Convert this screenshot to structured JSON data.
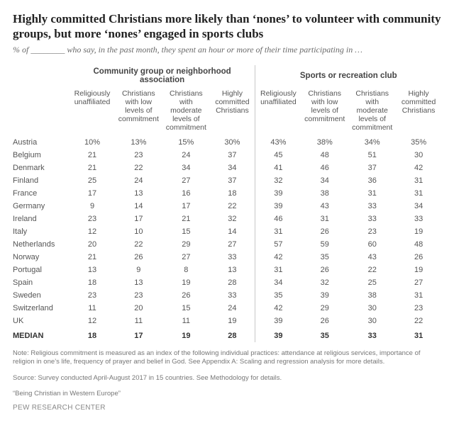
{
  "title": "Highly committed Christians more likely than ‘nones’ to volunteer with community groups, but more ‘nones’ engaged in sports clubs",
  "subtitle": "% of ________ who say, in the past month, they spent an hour or more of their time participating in …",
  "groups": {
    "left": "Community group or neighborhood association",
    "right": "Sports or recreation club"
  },
  "col_heads": {
    "c1": "Religiously unaffiliated",
    "c2": "Christians with low levels of commitment",
    "c3": "Christians with moderate levels of commitment",
    "c4": "Highly committed Christians"
  },
  "rows": [
    {
      "country": "Austria",
      "l": [
        "10%",
        "13%",
        "15%",
        "30%"
      ],
      "r": [
        "43%",
        "38%",
        "34%",
        "35%"
      ]
    },
    {
      "country": "Belgium",
      "l": [
        "21",
        "23",
        "24",
        "37"
      ],
      "r": [
        "45",
        "48",
        "51",
        "30"
      ]
    },
    {
      "country": "Denmark",
      "l": [
        "21",
        "22",
        "34",
        "34"
      ],
      "r": [
        "41",
        "46",
        "37",
        "42"
      ]
    },
    {
      "country": "Finland",
      "l": [
        "25",
        "24",
        "27",
        "37"
      ],
      "r": [
        "32",
        "34",
        "36",
        "31"
      ]
    },
    {
      "country": "France",
      "l": [
        "17",
        "13",
        "16",
        "18"
      ],
      "r": [
        "39",
        "38",
        "31",
        "31"
      ]
    },
    {
      "country": "Germany",
      "l": [
        "9",
        "14",
        "17",
        "22"
      ],
      "r": [
        "39",
        "43",
        "33",
        "34"
      ]
    },
    {
      "country": "Ireland",
      "l": [
        "23",
        "17",
        "21",
        "32"
      ],
      "r": [
        "46",
        "31",
        "33",
        "33"
      ]
    },
    {
      "country": "Italy",
      "l": [
        "12",
        "10",
        "15",
        "14"
      ],
      "r": [
        "31",
        "26",
        "23",
        "19"
      ]
    },
    {
      "country": "Netherlands",
      "l": [
        "20",
        "22",
        "29",
        "27"
      ],
      "r": [
        "57",
        "59",
        "60",
        "48"
      ]
    },
    {
      "country": "Norway",
      "l": [
        "21",
        "26",
        "27",
        "33"
      ],
      "r": [
        "42",
        "35",
        "43",
        "26"
      ]
    },
    {
      "country": "Portugal",
      "l": [
        "13",
        "9",
        "8",
        "13"
      ],
      "r": [
        "31",
        "26",
        "22",
        "19"
      ]
    },
    {
      "country": "Spain",
      "l": [
        "18",
        "13",
        "19",
        "28"
      ],
      "r": [
        "34",
        "32",
        "25",
        "27"
      ]
    },
    {
      "country": "Sweden",
      "l": [
        "23",
        "23",
        "26",
        "33"
      ],
      "r": [
        "35",
        "39",
        "38",
        "31"
      ]
    },
    {
      "country": "Switzerland",
      "l": [
        "11",
        "20",
        "15",
        "24"
      ],
      "r": [
        "42",
        "29",
        "30",
        "23"
      ]
    },
    {
      "country": "UK",
      "l": [
        "12",
        "11",
        "11",
        "19"
      ],
      "r": [
        "39",
        "26",
        "30",
        "22"
      ]
    }
  ],
  "median": {
    "label": "MEDIAN",
    "l": [
      "18",
      "17",
      "19",
      "28"
    ],
    "r": [
      "39",
      "35",
      "33",
      "31"
    ]
  },
  "note": "Note: Religious commitment is measured as an index of the following individual practices: attendance at religious services, importance of religion in one’s life, frequency of prayer and belief in God. See Appendix A: Scaling and regression analysis for more details.",
  "source": "Source: Survey conducted April-August 2017 in 15 countries. See Methodology for details.",
  "report": "“Being Christian in Western Europe”",
  "footer": "PEW RESEARCH CENTER",
  "style": {
    "text_color": "#555",
    "title_color": "#222",
    "subtitle_color": "#6a6a6a",
    "note_color": "#777",
    "separator_color": "#c8c8c8",
    "background": "#ffffff",
    "title_fontsize": 17,
    "body_fontsize": 11,
    "note_fontsize": 9.5,
    "country_col_width": 78,
    "data_col_width": 62
  }
}
